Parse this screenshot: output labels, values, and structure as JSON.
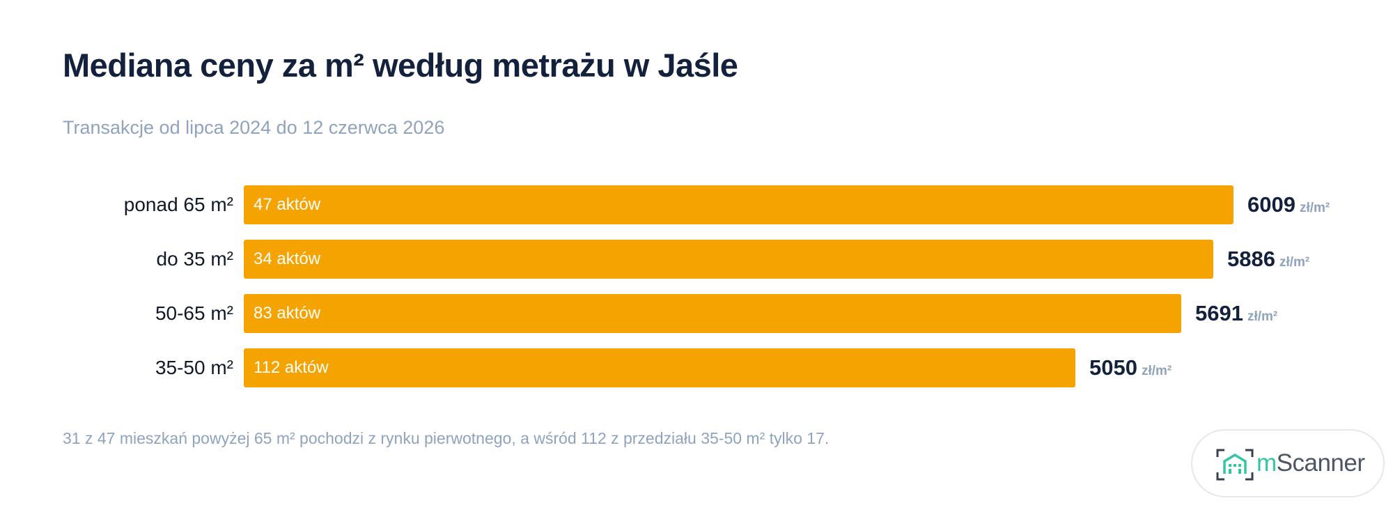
{
  "title": "Mediana ceny za m² według metrażu w Jaśle",
  "subtitle": "Transakcje od lipca 2024 do 12 czerwca 2026",
  "footnote": "31 z 47 mieszkań powyżej 65 m² pochodzi z rynku pierwotnego, a wśród 112 z przedziału 35-50 m² tylko 17.",
  "logo": {
    "prefix": "m",
    "name": "Scanner"
  },
  "colors": {
    "bar": "#f5a300",
    "title": "#14213d",
    "muted": "#8fa3bd",
    "logo_accent": "#34c6a2"
  },
  "chart_data": {
    "type": "bar",
    "orientation": "horizontal",
    "title": "Mediana ceny za m² według metrażu w Jaśle",
    "subtitle": "Transakcje od lipca 2024 do 12 czerwca 2026",
    "categories": [
      "ponad 65 m²",
      "do 35 m²",
      "50-65 m²",
      "35-50 m²"
    ],
    "values": [
      6009,
      5886,
      5691,
      5050
    ],
    "counts": [
      "47 aktów",
      "34 aktów",
      "83 aktów",
      "112 aktów"
    ],
    "unit": "zł/m²",
    "xlim": [
      0,
      6009
    ],
    "grid": false,
    "legend": "none"
  }
}
